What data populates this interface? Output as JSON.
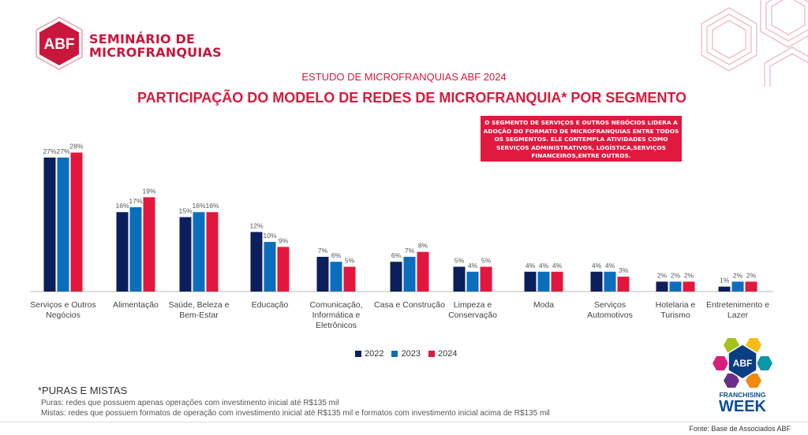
{
  "logo": {
    "badge": "ABF",
    "line1": "SEMINÁRIO DE",
    "line2": "MICROFRANQUIAS"
  },
  "header": {
    "subtitle": "ESTUDO DE MICROFRANQUIAS ABF 2024",
    "title": "PARTICIPAÇÃO DO MODELO DE REDES DE MICROFRANQUIA* POR SEGMENTO"
  },
  "callout": "O SEGMENTO DE SERVIÇOS E OUTROS NEGÓCIOS LIDERA A ADOÇÃO DO FORMATO DE MICROFRANQUIAS ENTRE TODOS OS SEGMENTOS. ELE CONTEMPLA ATIVIDADES COMO SERVIÇOS ADMINISTRATIVOS, LOGÍSTICA,SERVIÇOS FINANCEIROS,ENTRE OUTROS.",
  "chart_data": {
    "type": "bar",
    "categories": [
      "Serviços e Outros Negócios",
      "Alimentação",
      "Saúde, Beleza e Bem-Estar",
      "Educação",
      "Comunicação, Informática e Eletrônicos",
      "Casa e Construção",
      "Limpeza e Conservação",
      "Moda",
      "Serviços Automotivos",
      "Hotelaria e Turismo",
      "Entretenimento e Lazer"
    ],
    "series": [
      {
        "name": "2022",
        "color": "#0b1f5c",
        "values": [
          27,
          16,
          15,
          12,
          7,
          6,
          5,
          4,
          4,
          2,
          1
        ]
      },
      {
        "name": "2023",
        "color": "#0a6ebd",
        "values": [
          27,
          17,
          16,
          10,
          6,
          7,
          4,
          4,
          4,
          2,
          2
        ]
      },
      {
        "name": "2024",
        "color": "#e3173e",
        "values": [
          28,
          19,
          16,
          9,
          5,
          8,
          5,
          4,
          3,
          2,
          2
        ]
      }
    ],
    "value_suffix": "%",
    "ylim": [
      0,
      30
    ],
    "grid": false,
    "legend": "bottom"
  },
  "notes": {
    "title": "*PURAS E MISTAS",
    "puras": "Puras: redes que possuem apenas operações com investimento inicial até R$135 mil",
    "mistas": "Mistas: redes que possuem formatos de operação com investimento inicial até R$135 mil e formatos com investimento inicial acima de R$135 mil"
  },
  "source": "Fonte: Base de Associados ABF",
  "fw_logo": {
    "badge": "ABF",
    "line1": "FRANCHISING",
    "line2": "WEEK"
  }
}
